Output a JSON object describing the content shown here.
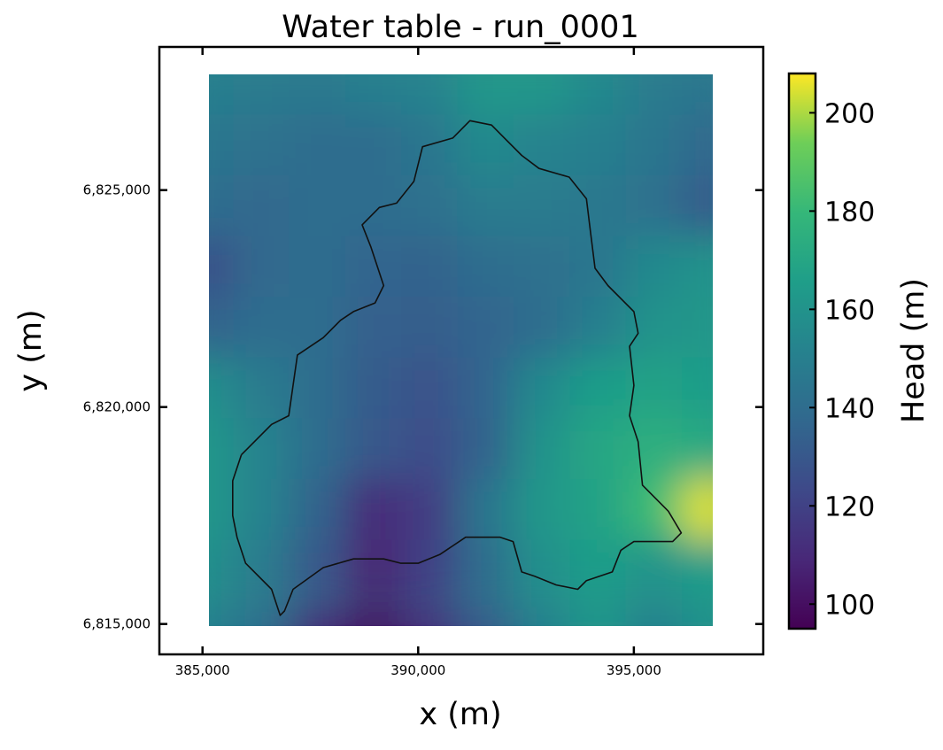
{
  "chart_data": {
    "type": "heatmap",
    "title": "Water table - run_0001",
    "xlabel": "x (m)",
    "ylabel": "y (m)",
    "xlim": [
      384000,
      398000
    ],
    "ylim": [
      6814300,
      6828300
    ],
    "xticks": [
      385000,
      390000,
      395000
    ],
    "xtick_labels": [
      "385,000",
      "390,000",
      "395,000"
    ],
    "yticks": [
      6815000,
      6820000,
      6825000
    ],
    "ytick_labels": [
      "6,815,000",
      "6,820,000",
      "6,825,000"
    ],
    "raster_extent": {
      "x": [
        385100,
        396800
      ],
      "y": [
        6814600,
        6827400
      ]
    },
    "colorbar": {
      "label": "Head (m)",
      "colormap": "viridis",
      "range": [
        95,
        208
      ],
      "ticks": [
        100,
        120,
        140,
        160,
        180,
        200
      ],
      "tick_labels": [
        "100",
        "120",
        "140",
        "160",
        "180",
        "200"
      ]
    },
    "head_field": {
      "x": [
        385100,
        386400,
        387700,
        389000,
        390300,
        391600,
        392900,
        394200,
        395500,
        396800
      ],
      "y": [
        6827400,
        6826000,
        6824600,
        6823200,
        6821800,
        6820400,
        6819000,
        6817600,
        6816200,
        6814600
      ],
      "values": [
        [
          150,
          148,
          146,
          150,
          152,
          162,
          162,
          155,
          148,
          145
        ],
        [
          145,
          143,
          140,
          140,
          145,
          155,
          152,
          150,
          145,
          138
        ],
        [
          140,
          138,
          140,
          140,
          142,
          148,
          148,
          146,
          142,
          132
        ],
        [
          126,
          138,
          140,
          136,
          135,
          140,
          142,
          145,
          155,
          160
        ],
        [
          135,
          140,
          140,
          134,
          133,
          136,
          140,
          150,
          160,
          162
        ],
        [
          158,
          148,
          140,
          132,
          128,
          136,
          155,
          165,
          168,
          165
        ],
        [
          162,
          152,
          140,
          130,
          125,
          135,
          160,
          170,
          175,
          172
        ],
        [
          162,
          152,
          135,
          110,
          118,
          145,
          162,
          168,
          182,
          205
        ],
        [
          158,
          148,
          130,
          108,
          120,
          140,
          158,
          165,
          160,
          165
        ],
        [
          150,
          140,
          110,
          100,
          112,
          130,
          150,
          162,
          150,
          160
        ]
      ]
    },
    "catchment_outline": [
      [
        385900,
        6818900
      ],
      [
        386600,
        6819600
      ],
      [
        387000,
        6819800
      ],
      [
        387200,
        6821200
      ],
      [
        387800,
        6821600
      ],
      [
        388200,
        6822000
      ],
      [
        388500,
        6822200
      ],
      [
        389000,
        6822400
      ],
      [
        389200,
        6822800
      ],
      [
        388900,
        6823700
      ],
      [
        388700,
        6824200
      ],
      [
        389100,
        6824600
      ],
      [
        389500,
        6824700
      ],
      [
        389900,
        6825200
      ],
      [
        390100,
        6826000
      ],
      [
        390800,
        6826200
      ],
      [
        391200,
        6826600
      ],
      [
        391700,
        6826500
      ],
      [
        392000,
        6826200
      ],
      [
        392400,
        6825800
      ],
      [
        392800,
        6825500
      ],
      [
        393500,
        6825300
      ],
      [
        393900,
        6824800
      ],
      [
        394000,
        6824000
      ],
      [
        394100,
        6823200
      ],
      [
        394400,
        6822800
      ],
      [
        395000,
        6822200
      ],
      [
        395100,
        6821700
      ],
      [
        394900,
        6821400
      ],
      [
        395000,
        6820500
      ],
      [
        394900,
        6819800
      ],
      [
        395100,
        6819200
      ],
      [
        395200,
        6818200
      ],
      [
        395800,
        6817600
      ],
      [
        396100,
        6817100
      ],
      [
        395900,
        6816900
      ],
      [
        395000,
        6816900
      ],
      [
        394700,
        6816700
      ],
      [
        394500,
        6816200
      ],
      [
        393900,
        6816000
      ],
      [
        393700,
        6815800
      ],
      [
        393200,
        6815900
      ],
      [
        392700,
        6816100
      ],
      [
        392400,
        6816200
      ],
      [
        392200,
        6816900
      ],
      [
        391900,
        6817000
      ],
      [
        391100,
        6817000
      ],
      [
        390500,
        6816600
      ],
      [
        390000,
        6816400
      ],
      [
        389600,
        6816400
      ],
      [
        389200,
        6816500
      ],
      [
        388500,
        6816500
      ],
      [
        387800,
        6816300
      ],
      [
        387100,
        6815800
      ],
      [
        386900,
        6815300
      ],
      [
        386800,
        6815200
      ],
      [
        386600,
        6815800
      ],
      [
        386000,
        6816400
      ],
      [
        385800,
        6817000
      ],
      [
        385700,
        6817500
      ],
      [
        385700,
        6818300
      ],
      [
        385900,
        6818900
      ]
    ]
  }
}
